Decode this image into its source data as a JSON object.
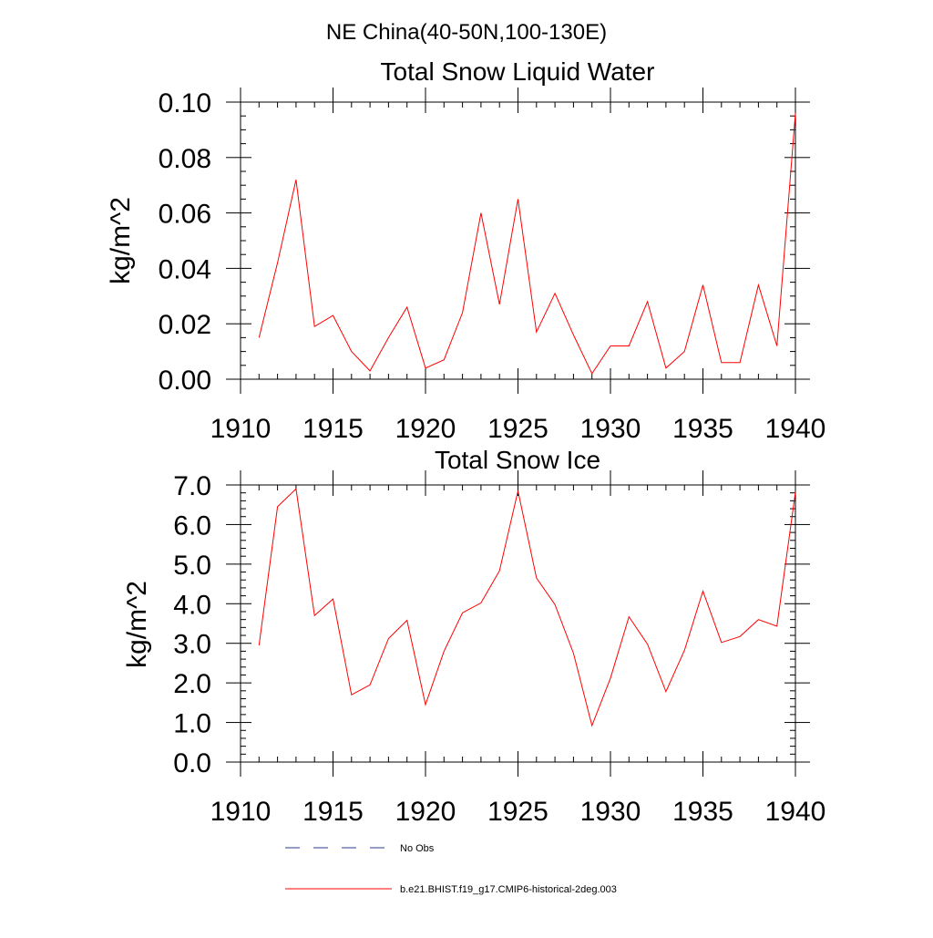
{
  "figure_title": "NE China(40-50N,100-130E)",
  "chart_data": [
    {
      "type": "line",
      "title": "Total Snow Liquid Water",
      "ylabel": "kg/m^2",
      "xlabel": "",
      "xlim": [
        1910,
        1940
      ],
      "ylim": [
        0,
        0.1
      ],
      "xticks": [
        1910,
        1915,
        1920,
        1925,
        1930,
        1935,
        1940
      ],
      "yticks": [
        "0.00",
        "0.02",
        "0.04",
        "0.06",
        "0.08",
        "0.10"
      ],
      "grid": false,
      "series": [
        {
          "name": "b.e21.BHIST.f19_g17.CMIP6-historical-2deg.003",
          "color": "#ff0000",
          "x": [
            1911,
            1912,
            1913,
            1914,
            1915,
            1916,
            1917,
            1918,
            1919,
            1920,
            1921,
            1922,
            1923,
            1924,
            1925,
            1926,
            1927,
            1928,
            1929,
            1930,
            1931,
            1932,
            1933,
            1934,
            1935,
            1936,
            1937,
            1938,
            1939,
            1940
          ],
          "y": [
            0.015,
            0.042,
            0.072,
            0.019,
            0.023,
            0.01,
            0.003,
            0.015,
            0.026,
            0.004,
            0.007,
            0.024,
            0.06,
            0.027,
            0.065,
            0.017,
            0.031,
            0.016,
            0.002,
            0.012,
            0.012,
            0.028,
            0.004,
            0.01,
            0.034,
            0.006,
            0.006,
            0.034,
            0.012,
            0.096
          ]
        }
      ]
    },
    {
      "type": "line",
      "title": "Total Snow Ice",
      "ylabel": "kg/m^2",
      "xlabel": "",
      "xlim": [
        1910,
        1940
      ],
      "ylim": [
        0,
        7
      ],
      "xticks": [
        1910,
        1915,
        1920,
        1925,
        1930,
        1935,
        1940
      ],
      "yticks": [
        "0.0",
        "1.0",
        "2.0",
        "3.0",
        "4.0",
        "5.0",
        "6.0",
        "7.0"
      ],
      "grid": false,
      "series": [
        {
          "name": "b.e21.BHIST.f19_g17.CMIP6-historical-2deg.003",
          "color": "#ff0000",
          "x": [
            1911,
            1912,
            1913,
            1914,
            1915,
            1916,
            1917,
            1918,
            1919,
            1920,
            1921,
            1922,
            1923,
            1924,
            1925,
            1926,
            1927,
            1928,
            1929,
            1930,
            1931,
            1932,
            1933,
            1934,
            1935,
            1936,
            1937,
            1938,
            1939,
            1940
          ],
          "y": [
            2.95,
            6.45,
            6.9,
            3.7,
            4.12,
            1.7,
            1.95,
            3.12,
            3.58,
            1.45,
            2.8,
            3.77,
            4.02,
            4.83,
            6.85,
            4.65,
            3.98,
            2.75,
            0.92,
            2.12,
            3.67,
            2.98,
            1.78,
            2.82,
            4.32,
            3.02,
            3.17,
            3.6,
            3.43,
            6.82
          ]
        }
      ]
    }
  ],
  "legend": {
    "placement": "bottom",
    "items": [
      {
        "label": "No Obs",
        "style": "dashed",
        "color": "#2b3a8c"
      },
      {
        "label": "b.e21.BHIST.f19_g17.CMIP6-historical-2deg.003",
        "style": "solid",
        "color": "#ff0000"
      }
    ]
  }
}
